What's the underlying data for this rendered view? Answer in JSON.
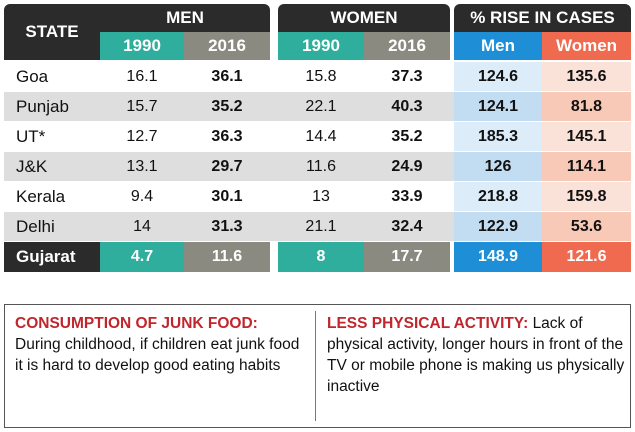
{
  "headers": {
    "state": "STATE",
    "men": "MEN",
    "women": "WOMEN",
    "rise": "% RISE IN CASES",
    "y1990": "1990",
    "y2016": "2016",
    "rise_men": "Men",
    "rise_women": "Women"
  },
  "rows": [
    {
      "state": "Goa",
      "m1990": "16.1",
      "m2016": "36.1",
      "w1990": "15.8",
      "w2016": "37.3",
      "rm": "124.6",
      "rw": "135.6"
    },
    {
      "state": "Punjab",
      "m1990": "15.7",
      "m2016": "35.2",
      "w1990": "22.1",
      "w2016": "40.3",
      "rm": "124.1",
      "rw": "81.8"
    },
    {
      "state": "UT*",
      "m1990": "12.7",
      "m2016": "36.3",
      "w1990": "14.4",
      "w2016": "35.2",
      "rm": "185.3",
      "rw": "145.1"
    },
    {
      "state": "J&K",
      "m1990": "13.1",
      "m2016": "29.7",
      "w1990": "11.6",
      "w2016": "24.9",
      "rm": "126",
      "rw": "114.1"
    },
    {
      "state": "Kerala",
      "m1990": "9.4",
      "m2016": "30.1",
      "w1990": "13",
      "w2016": "33.9",
      "rm": "218.8",
      "rw": "159.8"
    },
    {
      "state": "Delhi",
      "m1990": "14",
      "m2016": "31.3",
      "w1990": "21.1",
      "w2016": "32.4",
      "rm": "122.9",
      "rw": "53.6"
    }
  ],
  "highlight": {
    "state": "Gujarat",
    "m1990": "4.7",
    "m2016": "11.6",
    "w1990": "8",
    "w2016": "17.7",
    "rm": "148.9",
    "rw": "121.6"
  },
  "notes": {
    "left_title": "CONSUMPTION OF JUNK FOOD:",
    "left_text": "During childhood, if children eat junk food it is hard to develop good eating habits",
    "right_title": "LESS PHYSICAL ACTIVITY:",
    "right_text": "Lack of physical activity, longer hours in front of the TV or mobile phone is making us physically inactive"
  },
  "colors": {
    "dark": "#2b2b2b",
    "teal": "#2fae9d",
    "grey": "#8a8a80",
    "blue": "#1e8fd6",
    "salmon": "#ef6a4e",
    "row_light": "#ffffff",
    "row_grey": "#dedede",
    "rise_men_light": "#dcecf8",
    "rise_men_dark": "#c2ddf2",
    "rise_women_light": "#fbe2d8",
    "rise_women_dark": "#f7c9b6",
    "accent_red": "#c0262c"
  }
}
